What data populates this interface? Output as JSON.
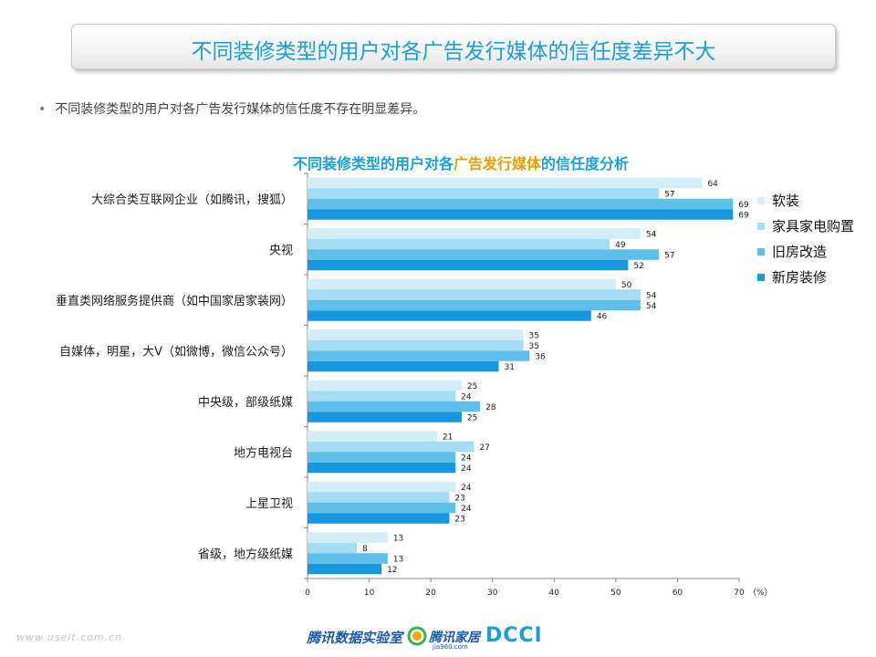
{
  "page": {
    "title": "不同装修类型的用户对各广告发行媒体的信任度差异不大",
    "bullet": "不同装修类型的用户对各广告发行媒体的信任度不存在明显差异。",
    "footer_url": "www.useit.com.cn",
    "footer_lab": "腾讯数据实验室",
    "footer_jiaju": "腾讯家居",
    "footer_jiaju_sub": "jia360.com",
    "footer_dcci": "DCCI"
  },
  "chart_data": {
    "type": "bar",
    "orientation": "horizontal",
    "title_parts": [
      "不同装修类型的用户对各",
      "广告发行媒体",
      "的信任度分析"
    ],
    "title_highlight_color": "#e8a000",
    "unit_label": "（%）",
    "xlim": [
      0,
      70
    ],
    "x_ticks": [
      0,
      10,
      20,
      30,
      40,
      50,
      60,
      70
    ],
    "grid": false,
    "legend_position": "right",
    "categories": [
      "大综合类互联网企业（如腾讯，搜狐）",
      "央视",
      "垂直类网络服务提供商（如中国家居家装网）",
      "自媒体，明星，大V（如微博，微信公众号）",
      "中央级，部级纸媒",
      "地方电视台",
      "上星卫视",
      "省级，地方级纸媒"
    ],
    "series": [
      {
        "name": "软装",
        "color": "#d2eef9",
        "values": [
          64,
          54,
          50,
          35,
          25,
          21,
          24,
          13
        ]
      },
      {
        "name": "家具家电购置",
        "color": "#a3dcf3",
        "values": [
          57,
          49,
          54,
          35,
          24,
          27,
          23,
          8
        ]
      },
      {
        "name": "旧房改造",
        "color": "#5ec0ea",
        "values": [
          69,
          57,
          54,
          36,
          28,
          24,
          24,
          13
        ]
      },
      {
        "name": "新房装修",
        "color": "#1797de",
        "values": [
          69,
          52,
          46,
          31,
          25,
          24,
          23,
          12
        ]
      }
    ]
  }
}
